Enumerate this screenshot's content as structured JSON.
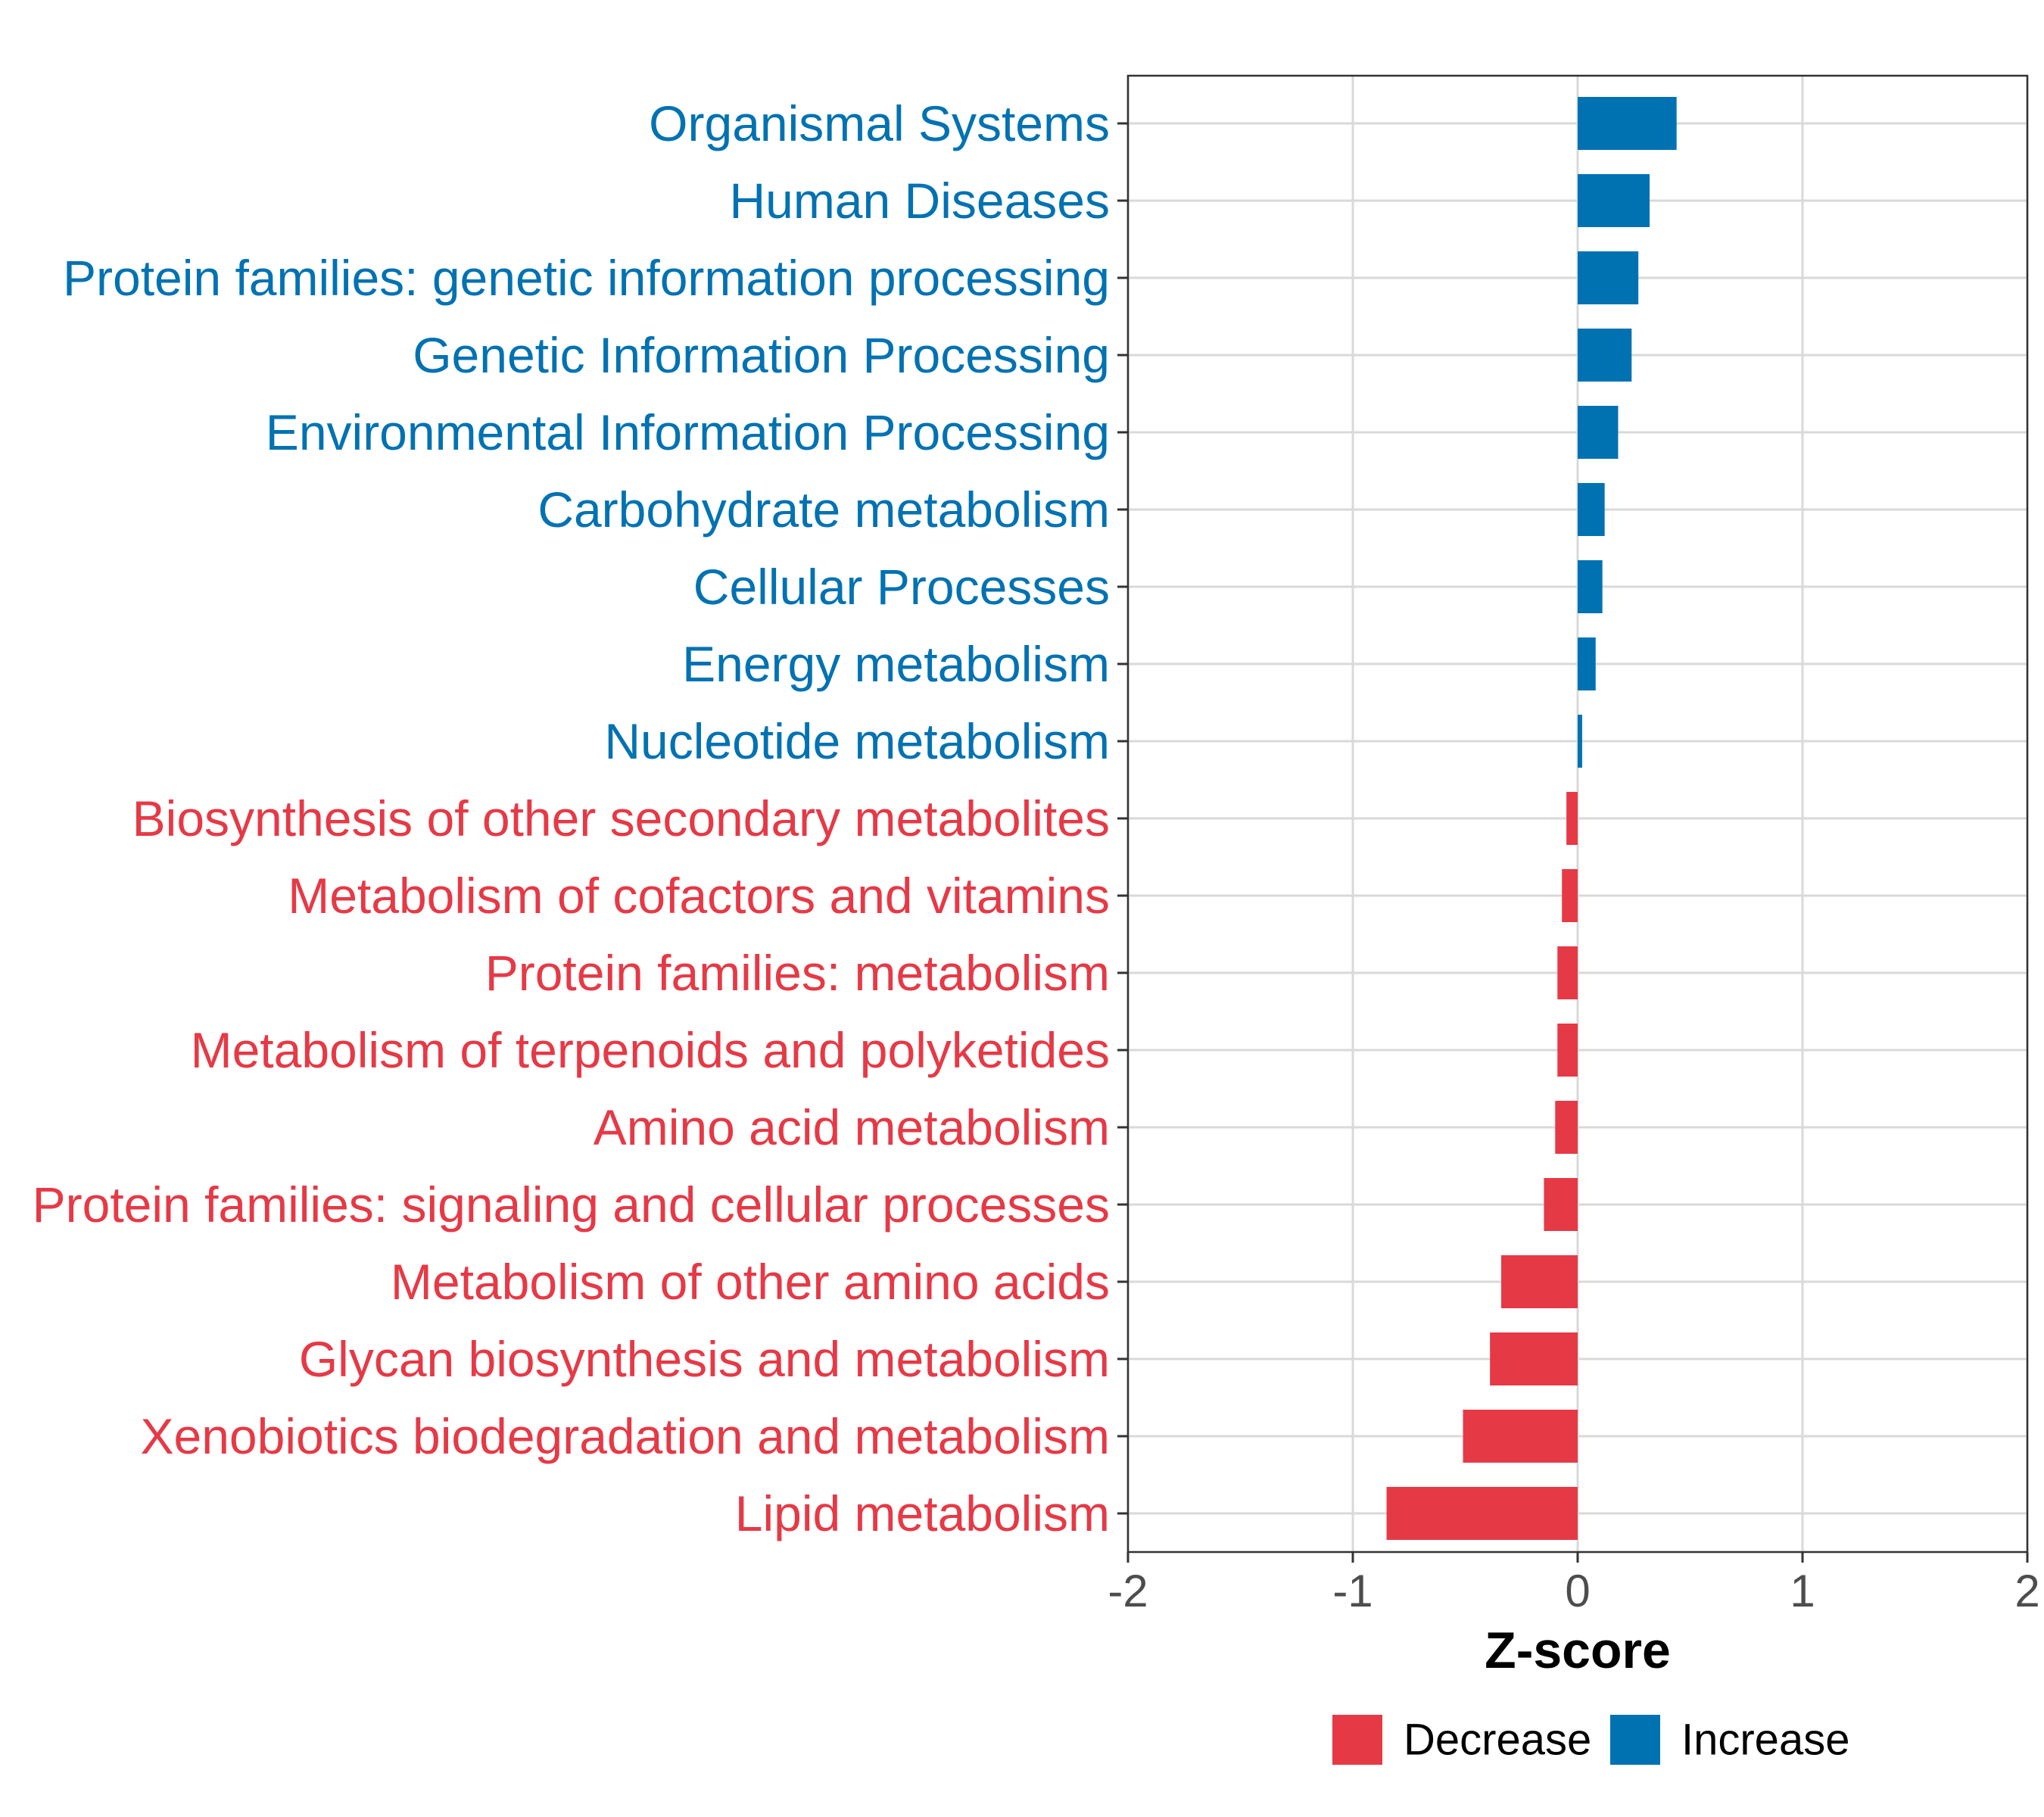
{
  "colors": {
    "increase": "#0072B2",
    "decrease": "#E63946",
    "grid": "#d9d9d9",
    "axis": "#333333"
  },
  "chart_data": {
    "type": "bar",
    "orientation": "horizontal",
    "title": "",
    "xlabel": "Z-score",
    "ylabel": "",
    "xlim": [
      -2,
      2
    ],
    "xticks": [
      -2,
      -1,
      0,
      1,
      2
    ],
    "xtick_labels": [
      "-2",
      "-1",
      "0",
      "1",
      "2"
    ],
    "grid": true,
    "legend_position": "bottom",
    "legend": [
      {
        "name": "Decrease",
        "color": "#E63946"
      },
      {
        "name": "Increase",
        "color": "#0072B2"
      }
    ],
    "categories": [
      "Organismal Systems",
      "Human Diseases",
      "Protein families: genetic information processing",
      "Genetic Information Processing",
      "Environmental Information Processing",
      "Carbohydrate metabolism",
      "Cellular Processes",
      "Energy metabolism",
      "Nucleotide metabolism",
      "Biosynthesis of other secondary metabolites",
      "Metabolism of cofactors and vitamins",
      "Protein families: metabolism",
      "Metabolism of terpenoids and polyketides",
      "Amino acid metabolism",
      "Protein families: signaling and cellular processes",
      "Metabolism of other amino acids",
      "Glycan biosynthesis and metabolism",
      "Xenobiotics biodegradation and metabolism",
      "Lipid metabolism"
    ],
    "values": [
      0.44,
      0.32,
      0.27,
      0.24,
      0.18,
      0.12,
      0.11,
      0.08,
      0.02,
      -0.05,
      -0.07,
      -0.09,
      -0.09,
      -0.1,
      -0.15,
      -0.34,
      -0.39,
      -0.51,
      -0.85
    ],
    "groups": [
      "Increase",
      "Increase",
      "Increase",
      "Increase",
      "Increase",
      "Increase",
      "Increase",
      "Increase",
      "Increase",
      "Decrease",
      "Decrease",
      "Decrease",
      "Decrease",
      "Decrease",
      "Decrease",
      "Decrease",
      "Decrease",
      "Decrease",
      "Decrease"
    ]
  }
}
